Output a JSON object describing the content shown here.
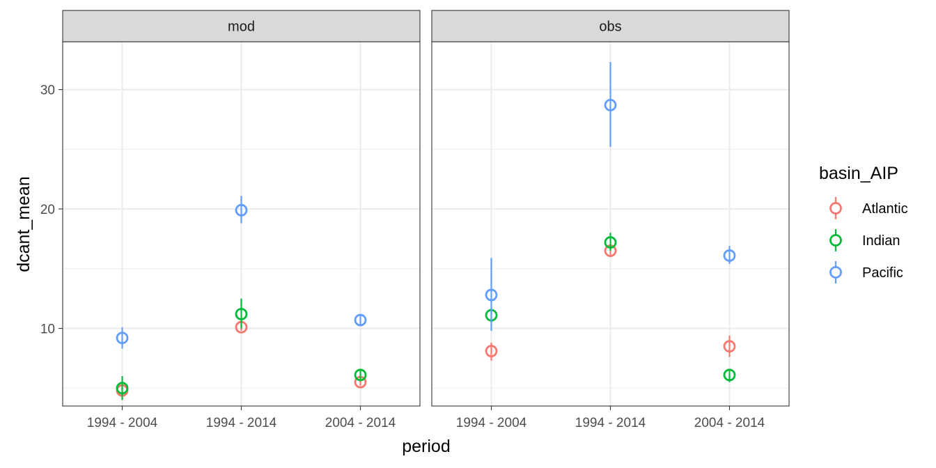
{
  "chart_data": {
    "type": "scatter",
    "subtype": "pointrange",
    "facets": [
      "mod",
      "obs"
    ],
    "categories": [
      "1994 - 2004",
      "1994 - 2014",
      "2004 - 2014"
    ],
    "xlabel": "period",
    "ylabel": "dcant_mean",
    "ylim": [
      3.5,
      34
    ],
    "yticks": [
      10,
      20,
      30
    ],
    "ytick_labels": [
      "10",
      "20",
      "30"
    ],
    "grid": true,
    "legend": {
      "title": "basin_AIP",
      "position": "right"
    },
    "series": [
      {
        "name": "Atlantic",
        "color": "#F8766D",
        "facets": {
          "mod": [
            {
              "x": "1994 - 2004",
              "y": 4.8,
              "ymin": 4.5,
              "ymax": 5.1
            },
            {
              "x": "1994 - 2014",
              "y": 10.1,
              "ymin": 9.8,
              "ymax": 10.4
            },
            {
              "x": "2004 - 2014",
              "y": 5.5,
              "ymin": 5.2,
              "ymax": 5.8
            }
          ],
          "obs": [
            {
              "x": "1994 - 2004",
              "y": 8.1,
              "ymin": 7.3,
              "ymax": 8.8
            },
            {
              "x": "1994 - 2014",
              "y": 16.5,
              "ymin": 16.0,
              "ymax": 17.0
            },
            {
              "x": "2004 - 2014",
              "y": 8.5,
              "ymin": 7.6,
              "ymax": 9.4
            }
          ]
        }
      },
      {
        "name": "Indian",
        "color": "#00BA38",
        "facets": {
          "mod": [
            {
              "x": "1994 - 2004",
              "y": 5.0,
              "ymin": 4.0,
              "ymax": 6.0
            },
            {
              "x": "1994 - 2014",
              "y": 11.2,
              "ymin": 10.0,
              "ymax": 12.5
            },
            {
              "x": "2004 - 2014",
              "y": 6.1,
              "ymin": 5.7,
              "ymax": 6.5
            }
          ],
          "obs": [
            {
              "x": "1994 - 2004",
              "y": 11.1,
              "ymin": 10.5,
              "ymax": 11.7
            },
            {
              "x": "1994 - 2014",
              "y": 17.2,
              "ymin": 16.5,
              "ymax": 18.0
            },
            {
              "x": "2004 - 2014",
              "y": 6.1,
              "ymin": 5.5,
              "ymax": 6.6
            }
          ]
        }
      },
      {
        "name": "Pacific",
        "color": "#619CFF",
        "facets": {
          "mod": [
            {
              "x": "1994 - 2004",
              "y": 9.2,
              "ymin": 8.3,
              "ymax": 10.1
            },
            {
              "x": "1994 - 2014",
              "y": 19.9,
              "ymin": 18.8,
              "ymax": 21.1
            },
            {
              "x": "2004 - 2014",
              "y": 10.7,
              "ymin": 10.3,
              "ymax": 11.1
            }
          ],
          "obs": [
            {
              "x": "1994 - 2004",
              "y": 12.8,
              "ymin": 9.8,
              "ymax": 15.9
            },
            {
              "x": "1994 - 2014",
              "y": 28.7,
              "ymin": 25.2,
              "ymax": 32.3
            },
            {
              "x": "2004 - 2014",
              "y": 16.1,
              "ymin": 15.4,
              "ymax": 16.9
            }
          ]
        }
      }
    ]
  }
}
